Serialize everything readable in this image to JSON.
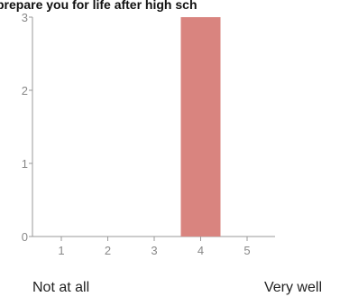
{
  "chart_data": {
    "type": "bar",
    "title": "prepare you for life after high sch",
    "categories": [
      "1",
      "2",
      "3",
      "4",
      "5"
    ],
    "values": [
      0,
      0,
      0,
      3,
      0
    ],
    "yticks": [
      "0",
      "1",
      "2",
      "3"
    ],
    "ylim": [
      0,
      3
    ],
    "bar_color": "#d9847f",
    "scale_labels": {
      "low": "Not at all",
      "high": "Very well"
    },
    "grid": false,
    "legend": "none"
  }
}
